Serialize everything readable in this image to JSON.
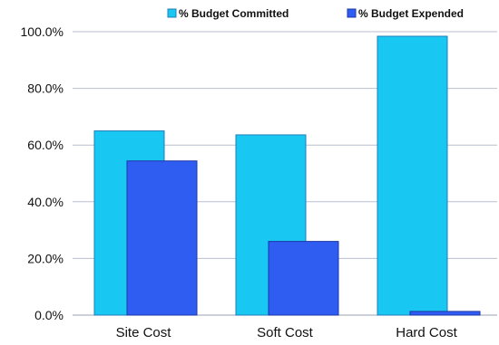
{
  "chart_data": {
    "type": "bar",
    "title": "",
    "xlabel": "",
    "ylabel": "",
    "categories": [
      "Site Cost",
      "Soft Cost",
      "Hard Cost"
    ],
    "series": [
      {
        "name": "% Budget Committed",
        "values": [
          65.0,
          63.6,
          98.4
        ],
        "color": "#19c7f3"
      },
      {
        "name": "% Budget Expended",
        "values": [
          54.4,
          26.0,
          1.3
        ],
        "color": "#2f5df2"
      }
    ],
    "ylim": [
      0,
      100
    ],
    "yticks": [
      0,
      20,
      40,
      60,
      80,
      100
    ],
    "ytick_labels": [
      "0.0%",
      "20.0%",
      "40.0%",
      "60.0%",
      "80.0%",
      "100.0%"
    ],
    "grid": true,
    "legend_position": "top-right",
    "colors": {
      "gridline": "#b9bfd0",
      "axis": "#9aa0b0",
      "bar_outline_committed": "#1f7fb8",
      "bar_outline_expended": "#1b37a8",
      "text": "#111111"
    }
  }
}
